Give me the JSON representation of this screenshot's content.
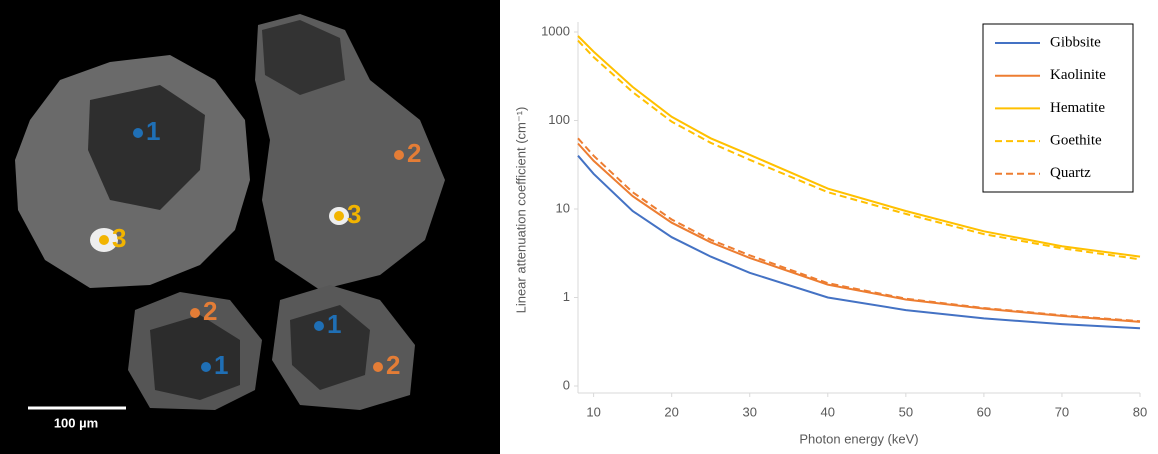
{
  "image": {
    "scale_bar": "100 µm",
    "markers": [
      {
        "label": "1",
        "color": "#1f6fb5"
      },
      {
        "label": "2",
        "color": "#e47d36"
      },
      {
        "label": "3",
        "color": "#f2b400"
      },
      {
        "label": "3",
        "color": "#f2b400"
      },
      {
        "label": "2",
        "color": "#e47d36"
      },
      {
        "label": "1",
        "color": "#1f6fb5"
      },
      {
        "label": "1",
        "color": "#1f6fb5"
      },
      {
        "label": "2",
        "color": "#e47d36"
      }
    ]
  },
  "chart_data": {
    "type": "line",
    "xlabel": "Photon energy (keV)",
    "ylabel": "Linear attenuation coefficient (cm⁻¹)",
    "x": [
      8,
      10,
      15,
      20,
      25,
      30,
      40,
      50,
      60,
      70,
      80
    ],
    "xlim": [
      8,
      80
    ],
    "xticks": [
      10,
      20,
      30,
      40,
      50,
      60,
      70,
      80
    ],
    "ylim": [
      0.1,
      1000
    ],
    "log_y": true,
    "yticks": [
      {
        "value": 0.1,
        "label": "0"
      },
      1,
      10,
      100,
      1000
    ],
    "legend": "upper right",
    "series": [
      {
        "name": "Gibbsite",
        "color": "#4472c4",
        "dash": false,
        "values": [
          40,
          25,
          9.5,
          4.8,
          2.9,
          1.9,
          1.0,
          0.72,
          0.58,
          0.5,
          0.45
        ]
      },
      {
        "name": "Kaolinite",
        "color": "#ed7d31",
        "dash": false,
        "values": [
          55,
          35,
          14,
          7,
          4.2,
          2.8,
          1.4,
          0.95,
          0.75,
          0.62,
          0.53
        ]
      },
      {
        "name": "Hematite",
        "color": "#ffc000",
        "dash": false,
        "values": [
          900,
          600,
          240,
          110,
          63,
          41,
          17,
          9.5,
          5.6,
          3.8,
          2.9
        ]
      },
      {
        "name": "Goethite",
        "color": "#ffc000",
        "dash": true,
        "values": [
          800,
          520,
          210,
          97,
          56,
          36,
          15.5,
          8.8,
          5.2,
          3.6,
          2.7
        ]
      },
      {
        "name": "Quartz",
        "color": "#ed7d31",
        "dash": true,
        "values": [
          63,
          40,
          15.5,
          7.6,
          4.5,
          3.0,
          1.45,
          0.97,
          0.76,
          0.63,
          0.54
        ]
      }
    ]
  }
}
